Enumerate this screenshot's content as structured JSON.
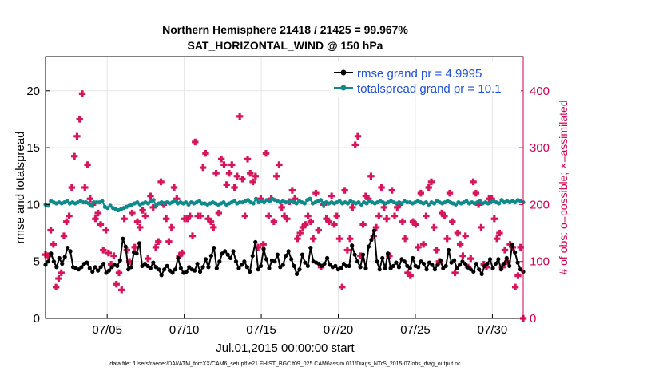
{
  "chart_data": {
    "type": "line",
    "title": "Northern Hemisphere 21418 / 21425 = 99.967%",
    "subtitle": "SAT_HORIZONTAL_WIND @ 150 hPa",
    "xlabel": "Jul.01,2015 00:00:00 start",
    "ylabel": "rmse and totalspread",
    "ylabel_right": "# of obs: o=possible; ×=assimilated",
    "footnote": "data file: /Users/raeder/DAI/ATM_forcXX/CAM6_setup/f.e21.FHIST_BGC.f09_025.CAM6assim.011/Diags_NTrS_2015-07/obs_diag_output.nc",
    "xlim": [
      1.0,
      32.0
    ],
    "xticks": [
      {
        "value": 5,
        "label": "07/05"
      },
      {
        "value": 10,
        "label": "07/10"
      },
      {
        "value": 15,
        "label": "07/15"
      },
      {
        "value": 20,
        "label": "07/20"
      },
      {
        "value": 25,
        "label": "07/25"
      },
      {
        "value": 30,
        "label": "07/30"
      }
    ],
    "ylim": [
      0,
      23
    ],
    "yticks": [
      0,
      5,
      10,
      15,
      20
    ],
    "ylim_right": [
      0,
      460
    ],
    "yticks_right": [
      0,
      100,
      200,
      300,
      400
    ],
    "grid": true,
    "legend_position": "top-right",
    "colors": {
      "rmse": "#000000",
      "spread": "#0f8a8a",
      "obs": "#d6155c",
      "right_axis": "#cc0055",
      "legend_text": "#1f4fd6",
      "grid": "#e6e6e6"
    },
    "series": [
      {
        "name": "rmse grand pr = 4.9995",
        "axis": "left",
        "color": "#000000",
        "values": [
          4.7,
          5.0,
          5.7,
          5.0,
          4.5,
          5.3,
          4.8,
          5.4,
          6.2,
          5.9,
          4.5,
          4.4,
          4.3,
          4.5,
          4.8,
          4.9,
          4.4,
          4.1,
          4.5,
          4.2,
          4.5,
          4.8,
          4.0,
          4.2,
          4.5,
          4.7,
          4.6,
          5.1,
          7.0,
          6.3,
          4.3,
          4.5,
          5.8,
          5.7,
          6.6,
          4.6,
          4.8,
          4.6,
          4.4,
          4.9,
          4.5,
          4.3,
          3.8,
          4.3,
          4.6,
          4.2,
          4.0,
          4.3,
          5.3,
          4.4,
          4.0,
          4.1,
          4.5,
          4.3,
          4.2,
          4.8,
          4.1,
          4.5,
          5.2,
          4.5,
          5.5,
          6.2,
          4.4,
          5.0,
          5.7,
          5.9,
          5.6,
          5.3,
          5.9,
          5.0,
          4.4,
          4.7,
          5.0,
          4.5,
          4.1,
          5.5,
          6.7,
          4.3,
          4.6,
          6.1,
          5.2,
          4.4,
          5.1,
          5.0,
          5.6,
          4.5,
          4.7,
          5.5,
          5.9,
          5.2,
          4.6,
          3.9,
          4.3,
          5.6,
          4.9,
          4.6,
          6.2,
          5.0,
          4.9,
          4.8,
          4.6,
          4.8,
          5.3,
          4.7,
          4.5,
          4.6,
          4.3,
          4.4,
          4.8,
          4.6,
          4.6,
          6.4,
          5.6,
          5.0,
          4.5,
          5.6,
          4.4,
          6.3,
          6.9,
          7.7,
          5.0,
          4.3,
          5.3,
          4.4,
          5.7,
          4.4,
          4.6,
          4.9,
          4.5,
          5.2,
          5.0,
          4.6,
          4.4,
          5.3,
          4.6,
          4.5,
          5.0,
          4.8,
          4.3,
          4.9,
          4.7,
          4.3,
          4.7,
          5.1,
          4.4,
          4.6,
          6.0,
          4.9,
          5.1,
          4.4,
          4.7,
          5.0,
          4.8,
          4.5,
          4.3,
          4.1,
          4.8,
          4.3,
          3.9,
          4.6,
          4.8,
          5.2,
          4.4,
          4.8,
          5.2,
          4.3,
          4.8,
          5.3,
          4.6,
          6.5,
          5.8,
          4.9,
          4.3,
          4.1
        ]
      },
      {
        "name": "totalspread grand pr = 10.1",
        "axis": "left",
        "color": "#0f8a8a",
        "values": [
          10.0,
          9.9,
          10.3,
          10.2,
          10.1,
          10.2,
          10.1,
          10.2,
          10.3,
          10.1,
          10.2,
          10.1,
          10.2,
          10.3,
          10.2,
          10.2,
          10.1,
          9.9,
          10.2,
          10.2,
          10.2,
          10.3,
          9.8,
          9.7,
          9.9,
          9.7,
          9.6,
          9.5,
          9.6,
          9.7,
          9.8,
          9.9,
          10.0,
          10.1,
          10.2,
          10.0,
          10.1,
          10.2,
          10.1,
          10.3,
          10.4,
          9.9,
          10.1,
          10.2,
          10.1,
          10.2,
          10.1,
          10.2,
          10.3,
          10.1,
          10.2,
          10.1,
          10.2,
          10.0,
          10.2,
          10.1,
          10.2,
          10.3,
          10.1,
          10.1,
          10.0,
          10.1,
          10.2,
          10.1,
          10.0,
          10.1,
          10.2,
          10.0,
          10.1,
          10.2,
          10.3,
          10.1,
          10.2,
          10.2,
          10.3,
          10.4,
          10.2,
          10.1,
          10.5,
          10.2,
          10.3,
          10.2,
          10.4,
          10.3,
          10.5,
          10.4,
          10.3,
          10.2,
          10.3,
          10.2,
          10.2,
          10.3,
          10.2,
          10.1,
          10.3,
          10.2,
          10.1,
          10.4,
          10.5,
          10.1,
          10.2,
          10.3,
          10.4,
          10.0,
          10.2,
          10.1,
          10.2,
          10.1,
          10.2,
          10.3,
          10.1,
          10.2,
          10.1,
          10.3,
          10.2,
          10.1,
          10.2,
          10.0,
          10.2,
          10.1,
          10.3,
          10.2,
          10.1,
          10.2,
          10.3,
          10.2,
          10.1,
          10.2,
          10.3,
          10.2,
          10.1,
          10.2,
          10.1,
          10.3,
          10.2,
          10.2,
          10.1,
          10.2,
          10.3,
          10.2,
          10.1,
          10.2,
          10.0,
          10.2,
          10.1,
          10.3,
          10.2,
          10.1,
          10.2,
          10.3,
          10.2,
          10.1,
          10.0,
          10.2,
          10.1,
          10.2,
          10.3,
          10.1,
          10.2,
          10.1,
          10.2,
          10.3,
          10.1,
          10.2,
          10.1,
          10.2,
          10.3,
          10.2,
          10.1,
          10.4,
          10.2,
          10.3,
          10.2,
          10.3,
          10.2,
          10.4,
          10.3,
          10.2
        ]
      },
      {
        "name": "# of obs",
        "axis": "right",
        "color": "#d6155c",
        "marker": "plus",
        "values": [
          112,
          110,
          155,
          130,
          55,
          70,
          80,
          145,
          170,
          180,
          230,
          285,
          320,
          350,
          395,
          230,
          270,
          210,
          200,
          175,
          185,
          165,
          120,
          155,
          115,
          95,
          110,
          60,
          80,
          50,
          175,
          120,
          100,
          185,
          125,
          170,
          160,
          190,
          180,
          105,
          215,
          195,
          125,
          135,
          240,
          200,
          175,
          135,
          160,
          230,
          210,
          110,
          115,
          175,
          175,
          180,
          145,
          310,
          180,
          180,
          265,
          290,
          175,
          170,
          160,
          255,
          185,
          280,
          270,
          235,
          255,
          270,
          230,
          250,
          355,
          245,
          180,
          280,
          255,
          240,
          250,
          125,
          210,
          130,
          290,
          180,
          210,
          170,
          250,
          270,
          195,
          180,
          175,
          205,
          225,
          210,
          140,
          150,
          160,
          165,
          180,
          170,
          140,
          220,
          155,
          90,
          200,
          175,
          170,
          215,
          165,
          180,
          140,
          55,
          225,
          120,
          140,
          195,
          305,
          320,
          110,
          165,
          215,
          210,
          250,
          145,
          160,
          180,
          230,
          195,
          175,
          110,
          225,
          180,
          195,
          200,
          170,
          140,
          80,
          75,
          170,
          165,
          125,
          220,
          130,
          180,
          230,
          240,
          160,
          120,
          100,
          185,
          180,
          140,
          220,
          170,
          80,
          150,
          130,
          110,
          145,
          90,
          105,
          240,
          220,
          200,
          160,
          95,
          90,
          210,
          210,
          175,
          140,
          150,
          90,
          120,
          100,
          130,
          125,
          55,
          75,
          125,
          0
        ]
      }
    ],
    "series_x_rmse_spread": {
      "start": 1.0,
      "step": 0.25,
      "count": 0
    },
    "obs_x_note": ""
  }
}
